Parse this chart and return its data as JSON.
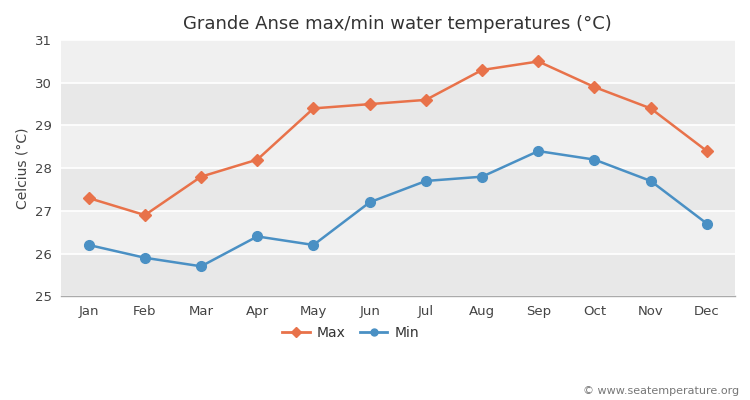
{
  "title": "Grande Anse max/min water temperatures (°C)",
  "ylabel": "Celcius (°C)",
  "months": [
    "Jan",
    "Feb",
    "Mar",
    "Apr",
    "May",
    "Jun",
    "Jul",
    "Aug",
    "Sep",
    "Oct",
    "Nov",
    "Dec"
  ],
  "max_temps": [
    27.3,
    26.9,
    27.8,
    28.2,
    29.4,
    29.5,
    29.6,
    30.3,
    30.5,
    29.9,
    29.4,
    28.4
  ],
  "min_temps": [
    26.2,
    25.9,
    25.7,
    26.4,
    26.2,
    27.2,
    27.7,
    27.8,
    28.4,
    28.2,
    27.7,
    26.7
  ],
  "max_color": "#E8724A",
  "min_color": "#4A90C4",
  "outer_bg_color": "#ffffff",
  "plot_bg_color": "#f0f0f0",
  "band_color": "#e8e8e8",
  "ylim": [
    25,
    31
  ],
  "yticks": [
    25,
    26,
    27,
    28,
    29,
    30,
    31
  ],
  "grid_color": "#ffffff",
  "watermark": "© www.seatemperature.org",
  "title_fontsize": 13,
  "axis_fontsize": 10,
  "tick_fontsize": 9.5,
  "watermark_fontsize": 8,
  "legend_fontsize": 10
}
